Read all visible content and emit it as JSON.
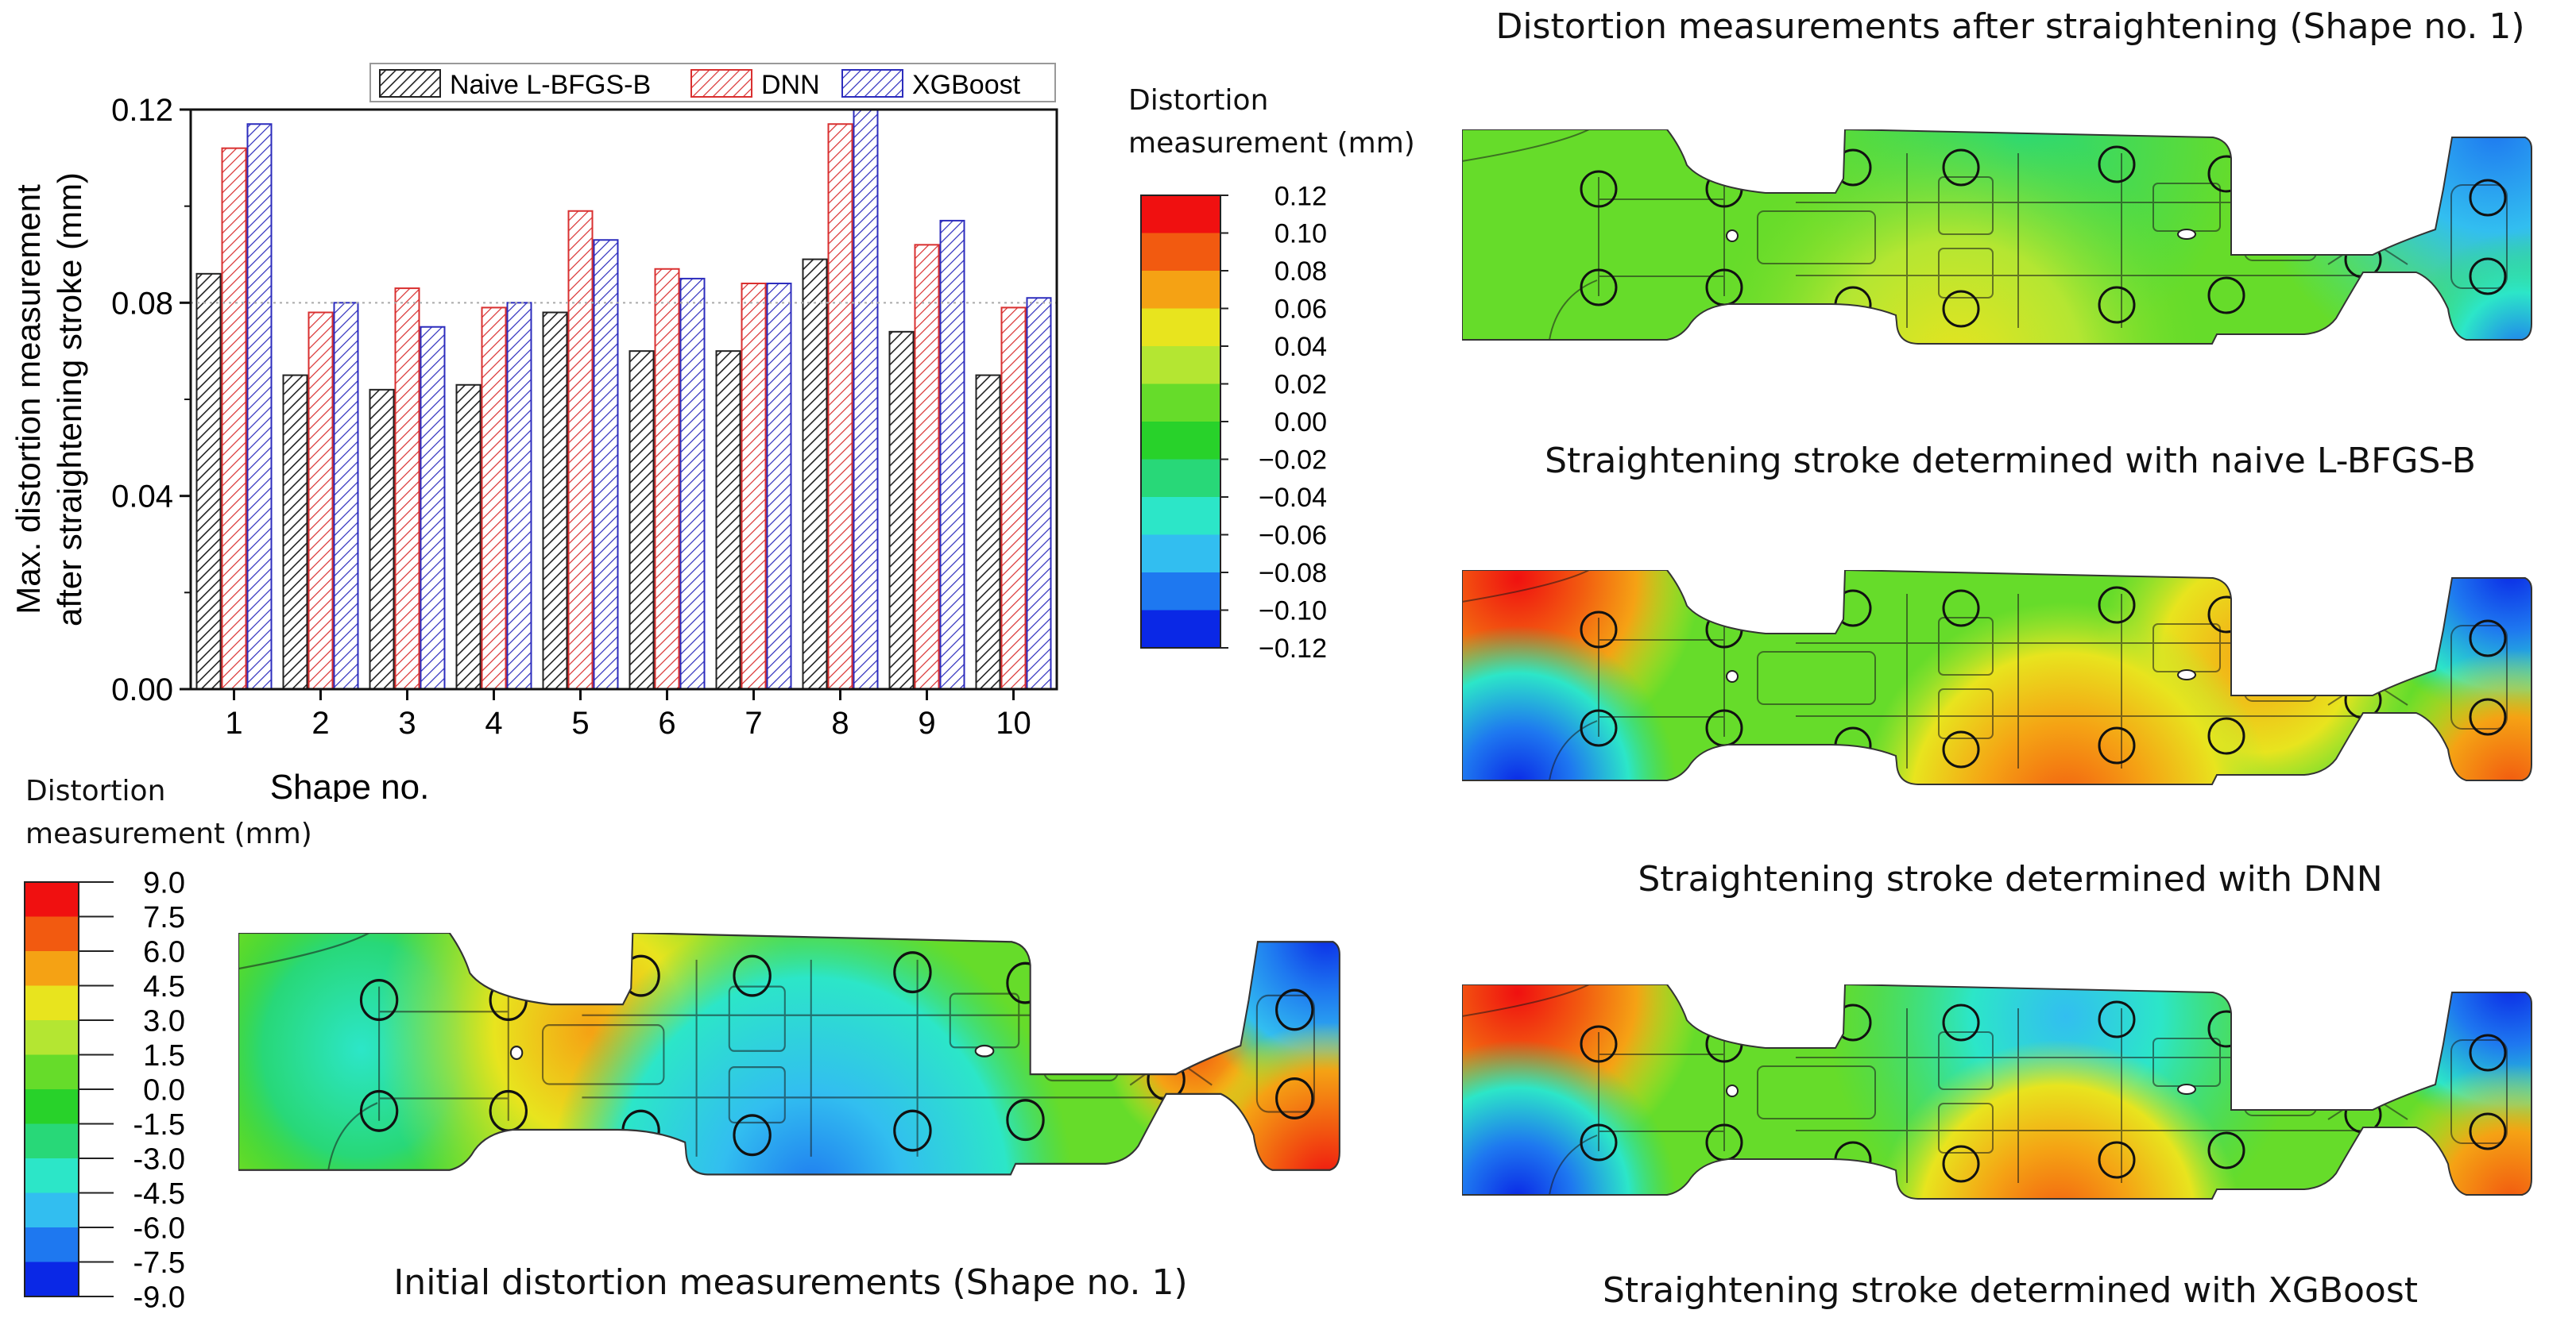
{
  "chart_data": {
    "type": "bar",
    "categories": [
      "1",
      "2",
      "3",
      "4",
      "5",
      "6",
      "7",
      "8",
      "9",
      "10"
    ],
    "series": [
      {
        "name": "Naive L-BFGS-B",
        "color": "#222222",
        "pattern": "hatch-dark",
        "values": [
          0.086,
          0.065,
          0.062,
          0.063,
          0.078,
          0.07,
          0.07,
          0.089,
          0.074,
          0.065
        ]
      },
      {
        "name": "DNN",
        "color": "#d93030",
        "pattern": "hatch-red",
        "values": [
          0.112,
          0.078,
          0.083,
          0.079,
          0.099,
          0.087,
          0.084,
          0.117,
          0.092,
          0.079
        ]
      },
      {
        "name": "XGBoost",
        "color": "#2d2dbd",
        "pattern": "hatch-blue",
        "values": [
          0.117,
          0.08,
          0.075,
          0.08,
          0.093,
          0.085,
          0.084,
          0.12,
          0.097,
          0.081
        ]
      }
    ],
    "xlabel": "Shape no.",
    "ylabel_line1": "Max. distortion measurement",
    "ylabel_line2": "after straightening stroke (mm)",
    "ylim": [
      0,
      0.12
    ],
    "yticks": [
      "0.00",
      "0.04",
      "0.08",
      "0.12"
    ],
    "reference_line": 0.08,
    "legend_position": "top"
  },
  "contour_plots": {
    "header": "Distortion measurements after straightening (Shape no. 1)",
    "initial_caption": "Initial distortion measurements (Shape no. 1)",
    "captions": [
      "Straightening stroke determined with naive L-BFGS-B",
      "Straightening stroke determined with DNN",
      "Straightening stroke determined with XGBoost"
    ]
  },
  "colorbar_small": {
    "title_line1": "Distortion",
    "title_line2": "measurement (mm)",
    "labels": [
      "0.12",
      "0.10",
      "0.08",
      "0.06",
      "0.04",
      "0.02",
      "0.00",
      "−0.02",
      "−0.04",
      "−0.06",
      "−0.08",
      "−0.10",
      "−0.12"
    ],
    "colors": [
      "#f01010",
      "#f25a10",
      "#f5a214",
      "#e8e41e",
      "#b4e632",
      "#66dc2a",
      "#28d22a",
      "#28d878",
      "#2ce6c8",
      "#32bef0",
      "#1e78f0",
      "#0a28e6"
    ]
  },
  "colorbar_large": {
    "title_line1": "Distortion",
    "title_line2": "measurement (mm)",
    "labels": [
      "9.0",
      "7.5",
      "6.0",
      "4.5",
      "3.0",
      "1.5",
      "0.0",
      "-1.5",
      "-3.0",
      "-4.5",
      "-6.0",
      "-7.5",
      "-9.0"
    ],
    "colors": [
      "#f01010",
      "#f25a10",
      "#f5a214",
      "#e8e41e",
      "#b4e632",
      "#66dc2a",
      "#28d22a",
      "#28d878",
      "#2ce6c8",
      "#32bef0",
      "#1e78f0",
      "#0a28e6"
    ]
  }
}
